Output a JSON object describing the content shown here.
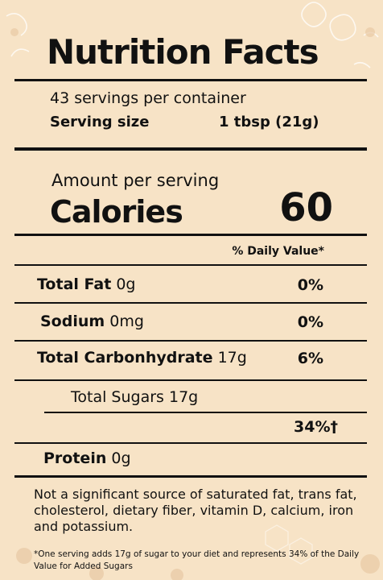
{
  "label": {
    "title": "Nutrition Facts",
    "servings_per_container": "43 servings per container",
    "serving_size_label": "Serving size",
    "serving_size_value": "1 tbsp (21g)",
    "amount_per_serving": "Amount per serving",
    "calories_label": "Calories",
    "calories_value": "60",
    "daily_value_header": "% Daily Value*",
    "nutrients": [
      {
        "name": "Total Fat",
        "amount": "0g",
        "dv": "0%"
      },
      {
        "name": "Sodium",
        "amount": "0mg",
        "dv": "0%"
      },
      {
        "name": "Total Carbonhydrate",
        "amount": "17g",
        "dv": "6%"
      },
      {
        "name": "Total Sugars",
        "amount": "17g",
        "dv": ""
      },
      {
        "name": "",
        "amount": "",
        "dv": "34%†"
      },
      {
        "name": "Protein",
        "amount": "0g",
        "dv": ""
      }
    ],
    "not_significant_note": "Not a significant source of saturated fat, trans fat, cholesterol, dietary fiber, vitamin D, calcium, iron and potassium.",
    "footnote": "*One serving adds 17g of sugar to your diet and represents 34% of the Daily Value for Added Sugars"
  },
  "colors": {
    "background": "#f7e3c6",
    "text": "#111111",
    "rule": "#111111"
  }
}
